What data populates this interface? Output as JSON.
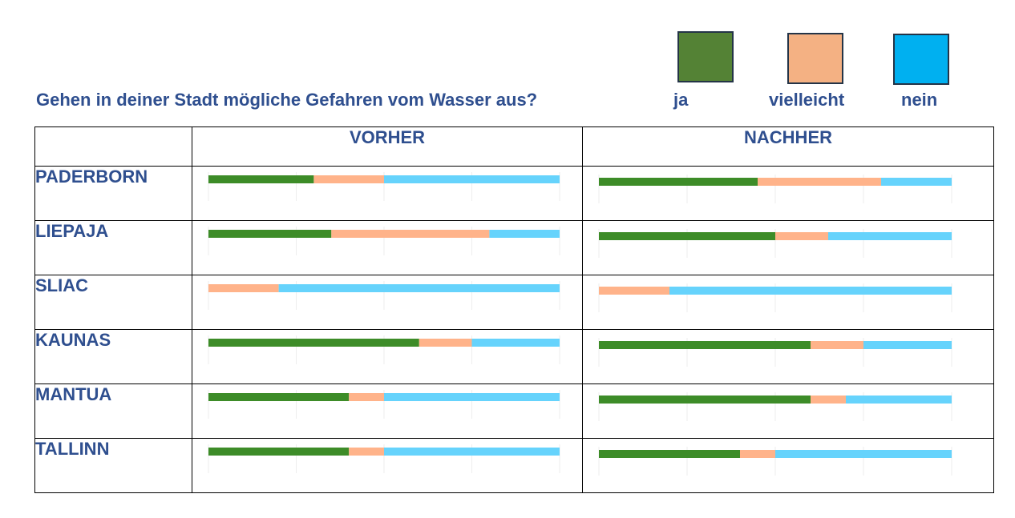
{
  "question": "Gehen in deiner Stadt mögliche Gefahren vom Wasser aus?",
  "legend": [
    {
      "label": "ja",
      "color": "#548235"
    },
    {
      "label": "vielleicht",
      "color": "#f4b183"
    },
    {
      "label": "nein",
      "color": "#00b0f0"
    }
  ],
  "columns": [
    "VORHER",
    "NACHHER"
  ],
  "bar_colors": [
    "#3d8c28",
    "#ffb38a",
    "#66d3fc"
  ],
  "chart_data": {
    "type": "bar",
    "orientation": "horizontal",
    "stacked": true,
    "unit": "percent",
    "categories": [
      "PADERBORN",
      "LIEPAJA",
      "SLIAC",
      "KAUNAS",
      "MANTUA",
      "TALLINN"
    ],
    "groups": [
      "VORHER",
      "NACHHER"
    ],
    "series": [
      {
        "name": "ja",
        "vorher": [
          30,
          35,
          0,
          60,
          40,
          40
        ],
        "nachher": [
          45,
          50,
          0,
          60,
          60,
          40
        ]
      },
      {
        "name": "vielleicht",
        "vorher": [
          20,
          45,
          20,
          15,
          10,
          10
        ],
        "nachher": [
          35,
          15,
          20,
          15,
          10,
          10
        ]
      },
      {
        "name": "nein",
        "vorher": [
          50,
          20,
          80,
          25,
          50,
          50
        ],
        "nachher": [
          20,
          35,
          80,
          25,
          30,
          50
        ]
      }
    ]
  }
}
